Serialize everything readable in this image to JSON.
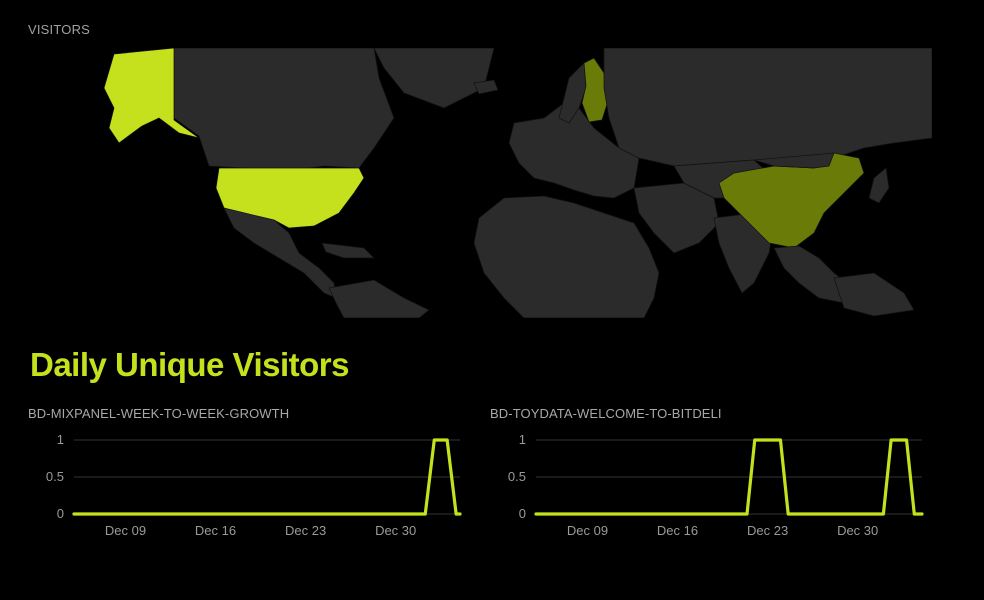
{
  "visitors_label": "VISITORS",
  "title": "Daily Unique Visitors",
  "colors": {
    "accent": "#c5e01d",
    "accent_dark": "#6b7b08",
    "land": "#2b2b2b",
    "background": "#000000"
  },
  "map": {
    "highlighted_countries": [
      {
        "name": "United States",
        "level": "high"
      },
      {
        "name": "Finland",
        "level": "medium"
      },
      {
        "name": "China",
        "level": "medium"
      }
    ]
  },
  "chart_data": [
    {
      "type": "line",
      "title": "BD-MIXPANEL-WEEK-TO-WEEK-GROWTH",
      "x_ticks": [
        "Dec 09",
        "Dec 16",
        "Dec 23",
        "Dec 30"
      ],
      "y_ticks": [
        "1",
        "0.5",
        "0"
      ],
      "ylim": [
        0,
        1
      ],
      "xlim": [
        0,
        30
      ],
      "tick_positions": [
        4,
        11,
        18,
        25
      ],
      "series": [
        {
          "x": [
            0,
            27.3,
            28.0,
            29.0,
            29.7,
            30.0
          ],
          "y": [
            0,
            0,
            1,
            1,
            0,
            0
          ]
        }
      ]
    },
    {
      "type": "line",
      "title": "BD-TOYDATA-WELCOME-TO-BITDELI",
      "x_ticks": [
        "Dec 09",
        "Dec 16",
        "Dec 23",
        "Dec 30"
      ],
      "y_ticks": [
        "1",
        "0.5",
        "0"
      ],
      "ylim": [
        0,
        1
      ],
      "xlim": [
        0,
        30
      ],
      "tick_positions": [
        4,
        11,
        18,
        25
      ],
      "series": [
        {
          "x": [
            0,
            16.4,
            17.0,
            19.0,
            19.6,
            27.0,
            27.6,
            28.8,
            29.4,
            30.0
          ],
          "y": [
            0,
            0,
            1,
            1,
            0,
            0,
            1,
            1,
            0,
            0
          ]
        }
      ]
    }
  ]
}
